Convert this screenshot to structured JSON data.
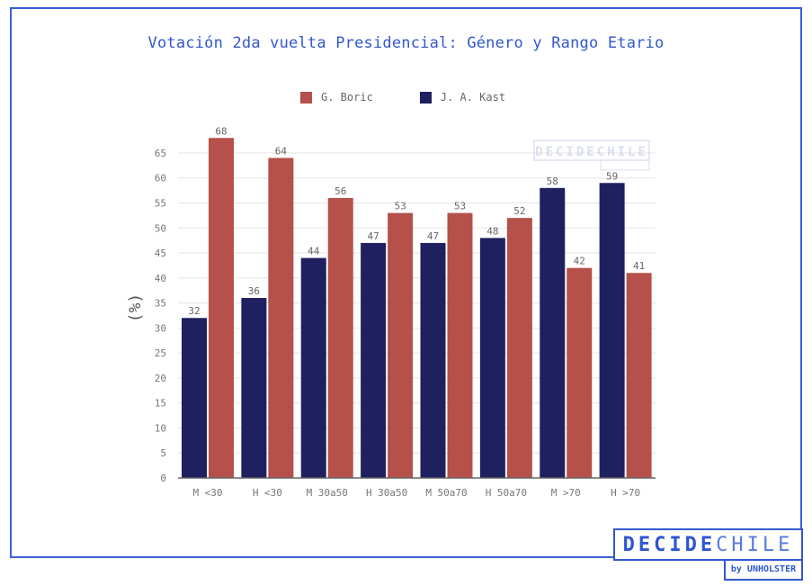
{
  "chart_data": {
    "type": "bar",
    "title": "Votación 2da vuelta Presidencial: Género y Rango Etario",
    "xlabel": "",
    "ylabel": "(%)",
    "ylim": [
      0,
      68
    ],
    "yticks": [
      0,
      5,
      10,
      15,
      20,
      25,
      30,
      35,
      40,
      45,
      50,
      55,
      60,
      65
    ],
    "grid": true,
    "legend_position": "top-center",
    "categories": [
      "M <30",
      "H <30",
      "M 30a50",
      "H 30a50",
      "M 50a70",
      "H 50a70",
      "M >70",
      "H >70"
    ],
    "series": [
      {
        "name": "J. A. Kast",
        "color": "#1f2060",
        "values": [
          32,
          36,
          44,
          47,
          47,
          48,
          58,
          59
        ]
      },
      {
        "name": "G. Boric",
        "color": "#b5504a",
        "values": [
          68,
          64,
          56,
          53,
          53,
          52,
          42,
          41
        ]
      }
    ]
  },
  "legend": [
    {
      "name": "G. Boric",
      "color": "#b5504a"
    },
    {
      "name": "J. A. Kast",
      "color": "#1f2060"
    }
  ],
  "watermark": {
    "text": "DECIDECHILE"
  },
  "logo": {
    "bold": "DECIDE",
    "light": "CHILE",
    "sub": "by UNHOLSTER"
  }
}
